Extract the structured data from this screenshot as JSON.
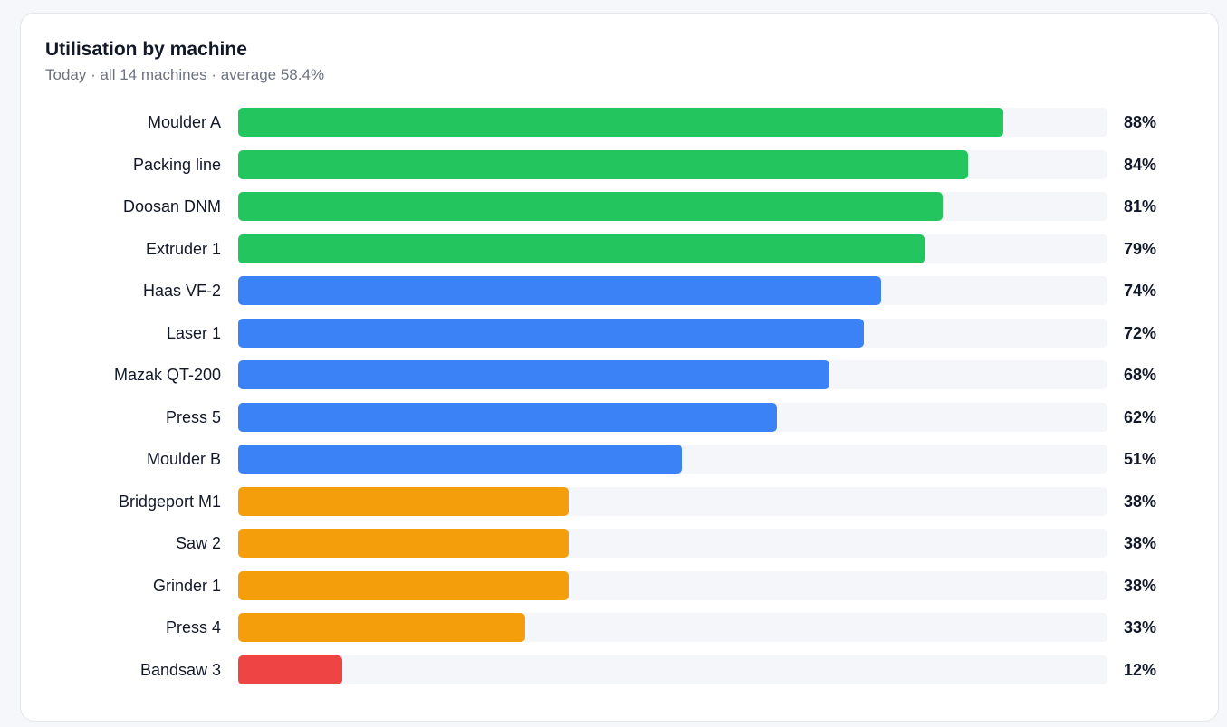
{
  "header": {
    "title": "Utilisation by machine",
    "subtitle": "Today · all 14 machines · average 58.4%"
  },
  "colors": {
    "high": "#22c55e",
    "medium": "#3b82f6",
    "low": "#f59e0b",
    "critical": "#ef4444",
    "track": "#f5f6fa"
  },
  "chart_data": {
    "type": "bar",
    "orientation": "horizontal",
    "title": "Utilisation by machine",
    "subtitle": "Today · all 14 machines · average 58.4%",
    "categories": [
      "Moulder A",
      "Packing line",
      "Doosan DNM",
      "Extruder 1",
      "Haas VF-2",
      "Laser 1",
      "Mazak QT-200",
      "Press 5",
      "Moulder B",
      "Bridgeport M1",
      "Saw 2",
      "Grinder 1",
      "Press 4",
      "Bandsaw 3"
    ],
    "values": [
      88,
      84,
      81,
      79,
      74,
      72,
      68,
      62,
      51,
      38,
      38,
      38,
      33,
      12
    ],
    "value_labels": [
      "88%",
      "84%",
      "81%",
      "79%",
      "74%",
      "72%",
      "68%",
      "62%",
      "51%",
      "38%",
      "38%",
      "38%",
      "33%",
      "12%"
    ],
    "bar_colors": [
      "#22c55e",
      "#22c55e",
      "#22c55e",
      "#22c55e",
      "#3b82f6",
      "#3b82f6",
      "#3b82f6",
      "#3b82f6",
      "#3b82f6",
      "#f59e0b",
      "#f59e0b",
      "#f59e0b",
      "#f59e0b",
      "#ef4444"
    ],
    "xlim": [
      0,
      100
    ],
    "unit": "%",
    "grid": false,
    "legend": "none"
  }
}
